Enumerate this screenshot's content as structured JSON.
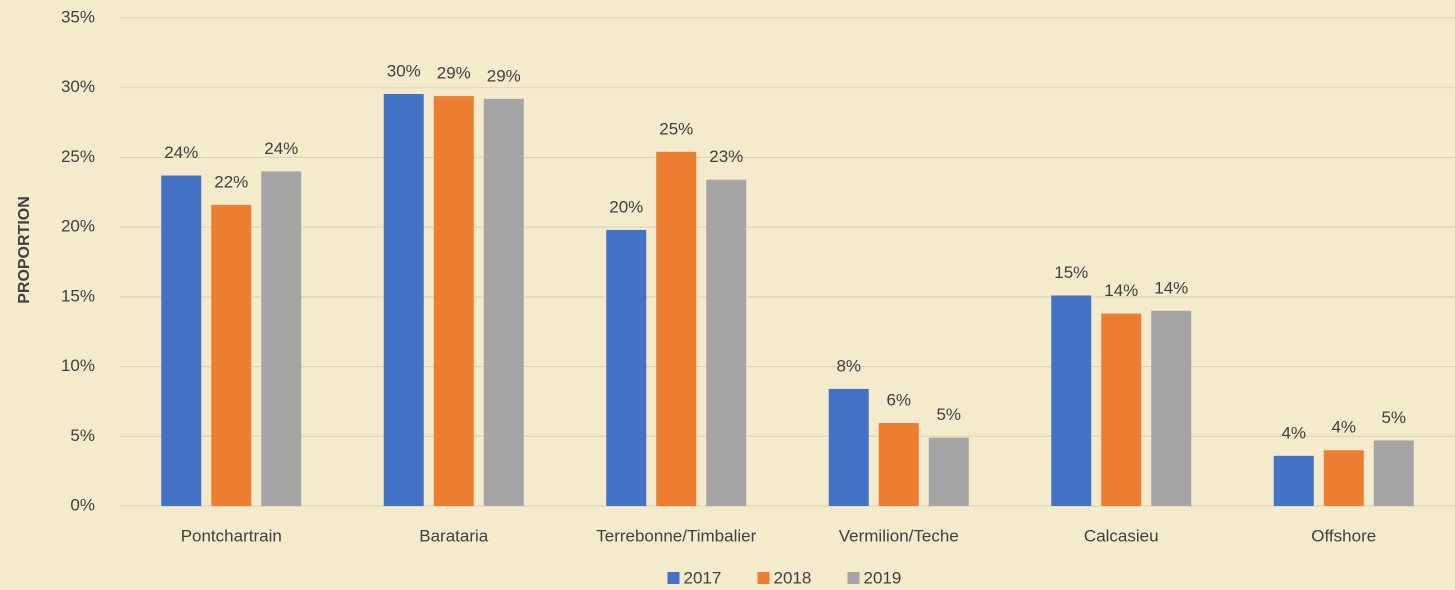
{
  "chart_data": {
    "type": "bar",
    "y_axis_label": "PROPORTION",
    "categories": [
      "Pontchartrain",
      "Barataria",
      "Terrebonne/Timbalier",
      "Vermilion/Teche",
      "Calcasieu",
      "Offshore"
    ],
    "series": [
      {
        "name": "2017",
        "color": "#4472c4",
        "values": [
          23.7,
          29.55,
          19.8,
          8.4,
          15.1,
          3.6
        ],
        "value_labels": [
          "24%",
          "30%",
          "20%",
          "8%",
          "15%",
          "4%"
        ]
      },
      {
        "name": "2018",
        "color": "#ed7d31",
        "values": [
          21.6,
          29.4,
          25.4,
          5.95,
          13.8,
          4.0
        ],
        "value_labels": [
          "22%",
          "29%",
          "25%",
          "6%",
          "14%",
          "4%"
        ]
      },
      {
        "name": "2019",
        "color": "#a5a5a5",
        "values": [
          24.0,
          29.2,
          23.4,
          4.9,
          14.0,
          4.7
        ],
        "value_labels": [
          "24%",
          "29%",
          "23%",
          "5%",
          "14%",
          "5%"
        ]
      }
    ],
    "ylim": [
      0,
      35
    ],
    "yticks": [
      {
        "value": 0,
        "label": "0%"
      },
      {
        "value": 5,
        "label": "5%"
      },
      {
        "value": 10,
        "label": "10%"
      },
      {
        "value": 15,
        "label": "15%"
      },
      {
        "value": 20,
        "label": "20%"
      },
      {
        "value": 25,
        "label": "25%"
      },
      {
        "value": 30,
        "label": "30%"
      },
      {
        "value": 35,
        "label": "35%"
      }
    ],
    "grid": true,
    "legend": "bottom"
  }
}
